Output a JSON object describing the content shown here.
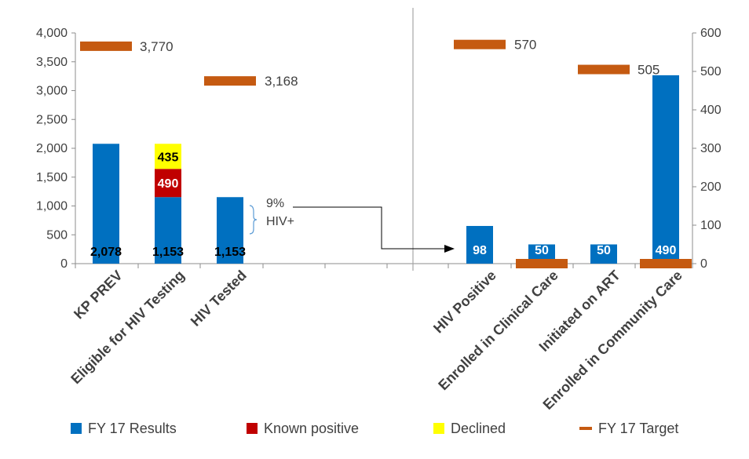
{
  "chart_data": {
    "type": "bar",
    "subtype": "stacked bar with target markers, dual axis",
    "left_panel": {
      "categories": [
        "KP PREV",
        "Eligible for HIV Testing",
        "HIV Tested"
      ],
      "series": [
        {
          "name": "FY 17 Results",
          "values": [
            2078,
            1153,
            1153
          ]
        },
        {
          "name": "Known positive",
          "values": [
            null,
            490,
            null
          ]
        },
        {
          "name": "Declined",
          "values": [
            null,
            435,
            null
          ]
        },
        {
          "name": "FY 17 Target",
          "values": [
            3770,
            null,
            3168
          ]
        }
      ],
      "data_labels": [
        "2,078",
        "1,153",
        "1,153"
      ],
      "stack_labels": [
        "490",
        "435"
      ],
      "target_labels": [
        "3,770",
        "3,168"
      ],
      "ylim": [
        0,
        4000
      ],
      "yticks": [
        "0",
        "500",
        "1,000",
        "1,500",
        "2,000",
        "2,500",
        "3,000",
        "3,500",
        "4,000"
      ]
    },
    "right_panel": {
      "categories": [
        "HIV Positive",
        "Enrolled in Clinical Care",
        "Initiated on ART",
        "Enrolled in Community Care"
      ],
      "series": [
        {
          "name": "FY 17 Results",
          "values": [
            98,
            50,
            50,
            490
          ]
        },
        {
          "name": "FY 17 Target",
          "values": [
            570,
            0,
            505,
            0
          ]
        }
      ],
      "data_labels": [
        "98",
        "50",
        "50",
        "490"
      ],
      "target_labels": [
        "570",
        "",
        "505",
        ""
      ],
      "ylim": [
        0,
        600
      ],
      "yticks": [
        "0",
        "100",
        "200",
        "300",
        "400",
        "500",
        "600"
      ]
    },
    "annotation": {
      "line1": "9%",
      "line2": "HIV+"
    },
    "legend": [
      {
        "name": "FY 17 Results",
        "color": "#0070C0",
        "kind": "box"
      },
      {
        "name": "Known positive",
        "color": "#C00000",
        "kind": "box"
      },
      {
        "name": "Declined",
        "color": "#FFFF00",
        "kind": "box"
      },
      {
        "name": "FY 17 Target",
        "color": "#C55A11",
        "kind": "line"
      }
    ],
    "legend_position": "bottom",
    "colors": {
      "results": "#0070C0",
      "known": "#C00000",
      "declined": "#FFFF00",
      "target": "#C55A11"
    }
  }
}
